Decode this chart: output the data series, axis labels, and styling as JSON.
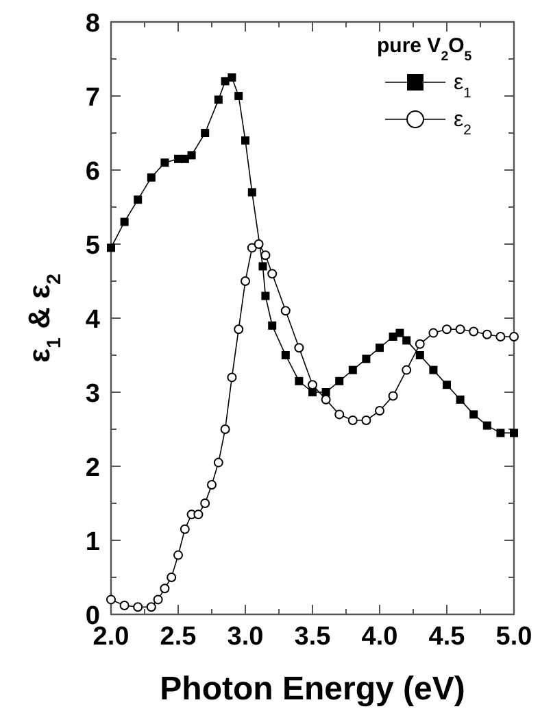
{
  "chart_data": {
    "type": "line",
    "xlabel": "Photon Energy (eV)",
    "ylabel": "ε$_{1}$ & ε$_{2}$",
    "legend_title": "pure V$_{2}$O$_{5}$",
    "xlim": [
      2.0,
      5.0
    ],
    "ylim": [
      0,
      8
    ],
    "xticks": [
      {
        "value": 2.0,
        "label": "2.0"
      },
      {
        "value": 2.25,
        "label": null
      },
      {
        "value": 2.5,
        "label": "2.5"
      },
      {
        "value": 2.75,
        "label": null
      },
      {
        "value": 3.0,
        "label": "3.0"
      },
      {
        "value": 3.25,
        "label": null
      },
      {
        "value": 3.5,
        "label": "3.5"
      },
      {
        "value": 3.75,
        "label": null
      },
      {
        "value": 4.0,
        "label": "4.0"
      },
      {
        "value": 4.25,
        "label": null
      },
      {
        "value": 4.5,
        "label": "4.5"
      },
      {
        "value": 4.75,
        "label": null
      },
      {
        "value": 5.0,
        "label": "5.0"
      }
    ],
    "yticks": [
      0,
      {
        "value": 0.5,
        "label": null
      },
      1,
      {
        "value": 1.5,
        "label": null
      },
      2,
      {
        "value": 2.5,
        "label": null
      },
      3,
      {
        "value": 3.5,
        "label": null
      },
      4,
      {
        "value": 4.5,
        "label": null
      },
      5,
      {
        "value": 5.5,
        "label": null
      },
      6,
      {
        "value": 6.5,
        "label": null
      },
      7,
      {
        "value": 7.5,
        "label": null
      },
      8
    ],
    "grid": false,
    "legend": "top right",
    "line_style": "solid",
    "series": [
      {
        "name": "ε$_{1}$",
        "color": "#000000",
        "marker": "square",
        "x": [
          2.0,
          2.1,
          2.2,
          2.3,
          2.4,
          2.5,
          2.55,
          2.6,
          2.7,
          2.8,
          2.85,
          2.9,
          2.95,
          3.0,
          3.05,
          3.13,
          3.15,
          3.2,
          3.3,
          3.4,
          3.5,
          3.6,
          3.7,
          3.8,
          3.9,
          4.0,
          4.1,
          4.15,
          4.2,
          4.3,
          4.4,
          4.5,
          4.6,
          4.7,
          4.8,
          4.9,
          5.0
        ],
        "values": [
          4.95,
          5.3,
          5.6,
          5.9,
          6.1,
          6.15,
          6.15,
          6.2,
          6.5,
          6.95,
          7.2,
          7.25,
          7.0,
          6.4,
          5.7,
          4.7,
          4.3,
          3.9,
          3.5,
          3.15,
          3.0,
          3.0,
          3.15,
          3.3,
          3.45,
          3.6,
          3.75,
          3.8,
          3.7,
          3.5,
          3.3,
          3.1,
          2.9,
          2.7,
          2.55,
          2.45,
          2.45
        ]
      },
      {
        "name": "ε$_{2}$",
        "color": "#000000",
        "marker": "circle",
        "x": [
          2.0,
          2.1,
          2.2,
          2.3,
          2.35,
          2.4,
          2.45,
          2.5,
          2.55,
          2.6,
          2.65,
          2.7,
          2.75,
          2.8,
          2.85,
          2.9,
          2.95,
          3.0,
          3.05,
          3.1,
          3.15,
          3.2,
          3.3,
          3.4,
          3.5,
          3.6,
          3.7,
          3.8,
          3.9,
          4.0,
          4.1,
          4.2,
          4.3,
          4.4,
          4.5,
          4.6,
          4.7,
          4.8,
          4.9,
          5.0
        ],
        "values": [
          0.2,
          0.12,
          0.1,
          0.1,
          0.2,
          0.35,
          0.5,
          0.8,
          1.15,
          1.35,
          1.35,
          1.5,
          1.75,
          2.05,
          2.5,
          3.2,
          3.85,
          4.5,
          4.95,
          5.0,
          4.85,
          4.6,
          4.1,
          3.6,
          3.1,
          2.9,
          2.7,
          2.62,
          2.62,
          2.75,
          2.95,
          3.3,
          3.65,
          3.8,
          3.85,
          3.85,
          3.82,
          3.78,
          3.75,
          3.75
        ]
      }
    ]
  }
}
